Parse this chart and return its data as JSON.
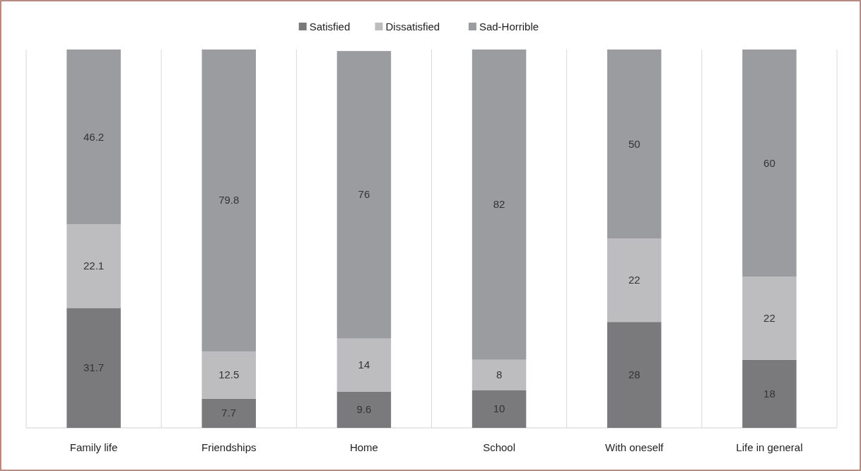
{
  "chart_data": {
    "type": "bar",
    "stacked": true,
    "categories": [
      "Family life",
      "Friendships",
      "Home",
      "School",
      "With oneself",
      "Life in general"
    ],
    "series": [
      {
        "name": "Satisfied",
        "color": "#7a7a7c",
        "values": [
          31.7,
          7.7,
          9.6,
          10,
          28,
          18
        ]
      },
      {
        "name": "Dissatisfied",
        "color": "#bdbdbf",
        "values": [
          22.1,
          12.5,
          14,
          8,
          22,
          22
        ]
      },
      {
        "name": "Sad-Horrible",
        "color": "#9b9c9f",
        "values": [
          46.2,
          79.8,
          76,
          82,
          50,
          60
        ]
      }
    ],
    "ylim": [
      0,
      100
    ],
    "tick_labels": "x",
    "data_labels": true,
    "legend": "top",
    "grid": "x"
  }
}
